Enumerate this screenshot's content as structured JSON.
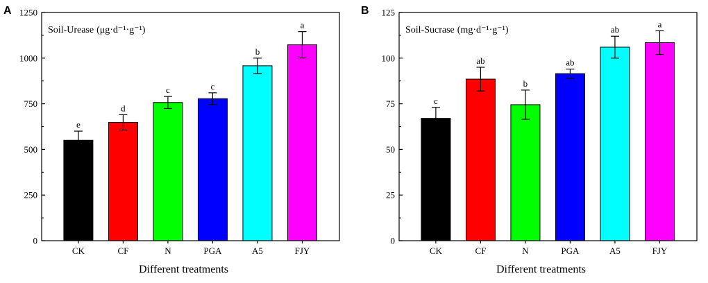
{
  "chart_data": [
    {
      "type": "bar",
      "panel_label": "A",
      "title": "Soil-Urease",
      "title_unit": "(μg·d⁻¹·g⁻¹)",
      "xlabel": "Different treatments",
      "ylabel": "",
      "ylim": [
        0,
        1250
      ],
      "yticks": [
        0,
        250,
        500,
        750,
        1000,
        1250
      ],
      "categories": [
        "CK",
        "CF",
        "N",
        "PGA",
        "A5",
        "FJY"
      ],
      "values": [
        550,
        648,
        757,
        778,
        958,
        1073
      ],
      "errors": [
        50,
        42,
        33,
        32,
        42,
        72
      ],
      "significance": [
        "e",
        "d",
        "c",
        "c",
        "b",
        "a"
      ],
      "colors": [
        "#000000",
        "#ff0000",
        "#00ff00",
        "#0000ff",
        "#00ffff",
        "#ff00ff"
      ]
    },
    {
      "type": "bar",
      "panel_label": "B",
      "title": "Soil-Sucrase",
      "title_unit": "(mg·d⁻¹·g⁻¹)",
      "xlabel": "Different treatments",
      "ylabel": "",
      "ylim": [
        0,
        125
      ],
      "yticks": [
        0,
        25,
        50,
        75,
        100,
        125
      ],
      "categories": [
        "CK",
        "CF",
        "N",
        "PGA",
        "A5",
        "FJY"
      ],
      "values": [
        67,
        88.5,
        74.5,
        91.5,
        106,
        108.5
      ],
      "errors": [
        6,
        6.5,
        8,
        2.5,
        6,
        6.5
      ],
      "significance": [
        "c",
        "ab",
        "b",
        "ab",
        "ab",
        "a"
      ],
      "colors": [
        "#000000",
        "#ff0000",
        "#00ff00",
        "#0000ff",
        "#00ffff",
        "#ff00ff"
      ]
    }
  ]
}
